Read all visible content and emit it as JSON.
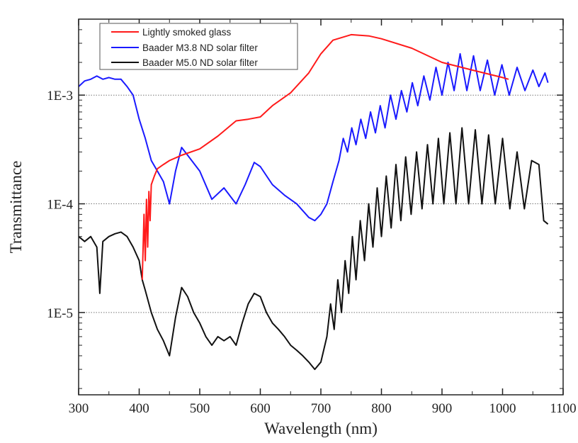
{
  "chart_data": {
    "type": "line",
    "title": "",
    "xlabel": "Wavelength (nm)",
    "ylabel": "Transmittance",
    "xlim": [
      300,
      1100
    ],
    "ylim": [
      1.75e-06,
      0.005
    ],
    "yscale": "log",
    "xticks": [
      300,
      400,
      500,
      600,
      700,
      800,
      900,
      1000,
      1100
    ],
    "xtick_labels": [
      "300",
      "400",
      "500",
      "600",
      "700",
      "800",
      "900",
      "1000",
      "1100"
    ],
    "yticks": [
      0.001,
      0.0001,
      1e-05
    ],
    "ytick_labels": [
      "1E-3",
      "1E-4",
      "1E-5"
    ],
    "grid": "horizontal dotted at major y ticks",
    "legend_position": "top-left",
    "series": [
      {
        "name": "Lightly smoked glass",
        "color": "#ff1a1a",
        "x": [
          405,
          408,
          410,
          412,
          414,
          416,
          418,
          420,
          425,
          430,
          440,
          450,
          470,
          500,
          530,
          560,
          580,
          600,
          620,
          650,
          680,
          700,
          720,
          750,
          780,
          800,
          850,
          900,
          950,
          1000,
          1010
        ],
        "y": [
          2e-05,
          8e-05,
          3e-05,
          0.00011,
          4e-05,
          0.00013,
          7e-05,
          0.00015,
          0.00018,
          0.00021,
          0.00023,
          0.00025,
          0.00028,
          0.00032,
          0.00042,
          0.00058,
          0.0006,
          0.00063,
          0.0008,
          0.00105,
          0.0016,
          0.0024,
          0.0032,
          0.0036,
          0.0035,
          0.0033,
          0.0027,
          0.002,
          0.0017,
          0.00145,
          0.0014
        ]
      },
      {
        "name": "Baader M3.8 ND solar filter",
        "color": "#1a1aff",
        "x": [
          300,
          310,
          320,
          330,
          340,
          350,
          360,
          370,
          380,
          390,
          400,
          410,
          420,
          430,
          440,
          450,
          460,
          470,
          480,
          500,
          520,
          540,
          560,
          575,
          590,
          600,
          620,
          640,
          660,
          680,
          690,
          700,
          710,
          720,
          730,
          737,
          744,
          751,
          758,
          766,
          774,
          782,
          790,
          798,
          806,
          815,
          824,
          833,
          842,
          851,
          860,
          870,
          880,
          890,
          900,
          910,
          920,
          930,
          941,
          952,
          963,
          975,
          987,
          999,
          1011,
          1024,
          1037,
          1050,
          1060,
          1070,
          1075
        ],
        "y": [
          0.0012,
          0.00135,
          0.0014,
          0.0015,
          0.0014,
          0.00145,
          0.0014,
          0.0014,
          0.0012,
          0.001,
          0.0006,
          0.0004,
          0.00025,
          0.0002,
          0.00016,
          0.0001,
          0.0002,
          0.00033,
          0.00028,
          0.0002,
          0.00011,
          0.00014,
          0.0001,
          0.00015,
          0.00024,
          0.00022,
          0.00015,
          0.00012,
          0.0001,
          7.5e-05,
          7e-05,
          8e-05,
          0.0001,
          0.00016,
          0.00025,
          0.0004,
          0.0003,
          0.0005,
          0.00035,
          0.0006,
          0.0004,
          0.0007,
          0.00045,
          0.0008,
          0.0005,
          0.001,
          0.0006,
          0.0011,
          0.0007,
          0.0013,
          0.0008,
          0.0015,
          0.0009,
          0.0018,
          0.001,
          0.002,
          0.0011,
          0.0024,
          0.0011,
          0.0023,
          0.0011,
          0.0021,
          0.001,
          0.0019,
          0.001,
          0.0018,
          0.0011,
          0.0017,
          0.0012,
          0.0016,
          0.0013
        ]
      },
      {
        "name": "Baader M5.0 ND solar filter",
        "color": "#111111",
        "x": [
          300,
          310,
          320,
          330,
          335,
          340,
          350,
          360,
          370,
          380,
          390,
          400,
          405,
          410,
          420,
          430,
          440,
          450,
          460,
          470,
          480,
          490,
          500,
          510,
          520,
          530,
          540,
          550,
          560,
          570,
          580,
          590,
          600,
          610,
          620,
          630,
          640,
          650,
          660,
          670,
          680,
          690,
          700,
          710,
          716,
          722,
          728,
          734,
          740,
          746,
          752,
          758,
          765,
          772,
          779,
          786,
          793,
          800,
          808,
          816,
          824,
          832,
          840,
          849,
          858,
          867,
          876,
          885,
          894,
          903,
          913,
          923,
          933,
          944,
          955,
          966,
          977,
          988,
          1000,
          1012,
          1024,
          1036,
          1048,
          1060,
          1068,
          1075
        ],
        "y": [
          5e-05,
          4.5e-05,
          5e-05,
          4e-05,
          1.5e-05,
          4.5e-05,
          5e-05,
          5.3e-05,
          5.5e-05,
          5e-05,
          4e-05,
          3e-05,
          2e-05,
          1.6e-05,
          1e-05,
          7e-06,
          5.5e-06,
          4e-06,
          9e-06,
          1.7e-05,
          1.4e-05,
          1e-05,
          8e-06,
          6e-06,
          5e-06,
          6e-06,
          5.5e-06,
          6e-06,
          5e-06,
          8e-06,
          1.2e-05,
          1.5e-05,
          1.4e-05,
          1e-05,
          8e-06,
          7e-06,
          6e-06,
          5e-06,
          4.5e-06,
          4e-06,
          3.5e-06,
          3e-06,
          3.5e-06,
          6e-06,
          1.2e-05,
          7e-06,
          2e-05,
          1e-05,
          3e-05,
          1.5e-05,
          5e-05,
          2e-05,
          7e-05,
          3e-05,
          0.0001,
          4e-05,
          0.00014,
          5e-05,
          0.00018,
          6e-05,
          0.00023,
          7e-05,
          0.00027,
          8e-05,
          0.0003,
          9e-05,
          0.00035,
          0.0001,
          0.0004,
          0.0001,
          0.00045,
          0.0001,
          0.0005,
          0.0001,
          0.00048,
          0.0001,
          0.00043,
          0.0001,
          0.0004,
          9e-05,
          0.0003,
          9e-05,
          0.00025,
          0.00023,
          7e-05,
          6.5e-05
        ]
      }
    ]
  }
}
